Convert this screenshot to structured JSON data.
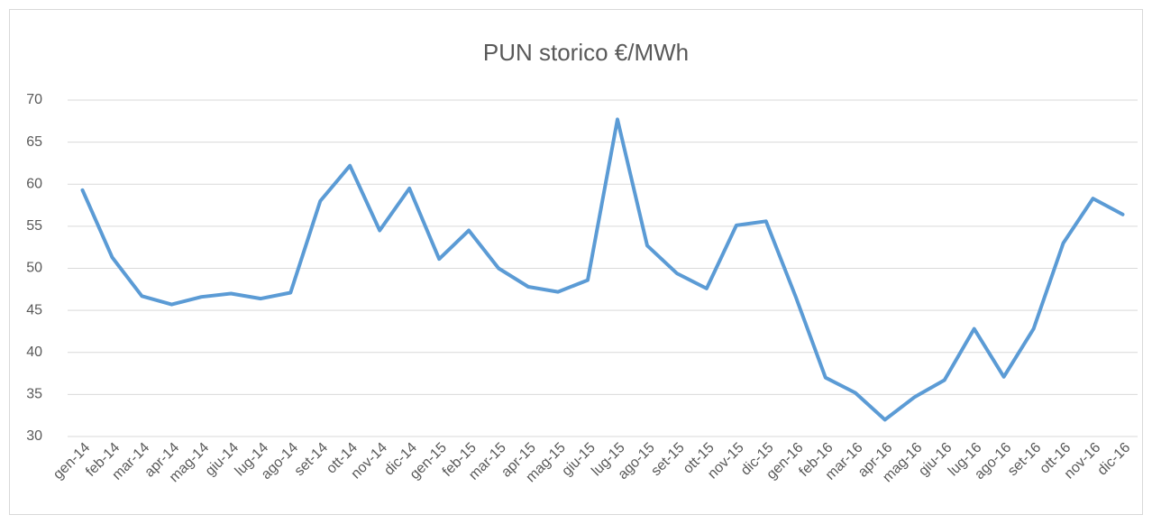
{
  "chart_data": {
    "type": "line",
    "title": "PUN storico €/MWh",
    "categories": [
      "gen-14",
      "feb-14",
      "mar-14",
      "apr-14",
      "mag-14",
      "giu-14",
      "lug-14",
      "ago-14",
      "set-14",
      "ott-14",
      "nov-14",
      "dic-14",
      "gen-15",
      "feb-15",
      "mar-15",
      "apr-15",
      "mag-15",
      "giu-15",
      "lug-15",
      "ago-15",
      "set-15",
      "ott-15",
      "nov-15",
      "dic-15",
      "gen-16",
      "feb-16",
      "mar-16",
      "apr-16",
      "mag-16",
      "giu-16",
      "lug-16",
      "ago-16",
      "set-16",
      "ott-16",
      "nov-16",
      "dic-16"
    ],
    "values": [
      59.3,
      51.3,
      46.7,
      45.7,
      46.6,
      47.0,
      46.4,
      47.1,
      58.0,
      62.2,
      54.5,
      59.5,
      51.1,
      54.5,
      50.0,
      47.8,
      47.2,
      48.6,
      67.7,
      52.7,
      49.4,
      47.6,
      55.1,
      55.6,
      46.6,
      37.0,
      35.2,
      32.0,
      34.7,
      36.7,
      42.8,
      37.1,
      42.8,
      53.0,
      58.3,
      56.4
    ],
    "color": "#5b9bd5",
    "ylim": [
      30,
      70
    ],
    "yticks": [
      30,
      35,
      40,
      45,
      50,
      55,
      60,
      65,
      70
    ],
    "grid": true
  }
}
